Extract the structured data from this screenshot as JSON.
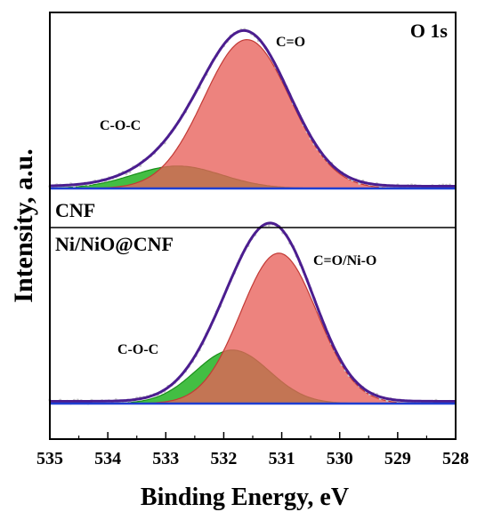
{
  "chart_data": {
    "type": "area",
    "xlabel": "Binding Energy, eV",
    "ylabel": "Intensity, a.u.",
    "xlim": [
      535,
      528
    ],
    "x_ticks": [
      "535",
      "534",
      "533",
      "532",
      "531",
      "530",
      "529",
      "528"
    ],
    "x_reversed": true,
    "grid": false,
    "colors": {
      "envelope": "#4b1d8f",
      "main_peak": "#e8605a",
      "main_peak_edge": "#c23a36",
      "secondary_peak": "#22b322",
      "secondary_peak_edge": "#1a8f1a",
      "baseline": "#1f3fd1",
      "raw_points": "#c9c9c9"
    },
    "panels": [
      {
        "name": "CNF",
        "label": "CNF",
        "corner_label": "O 1s",
        "peaks": [
          {
            "label": "C=O",
            "center": 531.6,
            "height": 0.93,
            "fwhm": 1.75,
            "color": "main_peak"
          },
          {
            "label": "C-O-C",
            "center": 532.8,
            "height": 0.14,
            "fwhm": 1.8,
            "color": "secondary_peak"
          }
        ]
      },
      {
        "name": "Ni/NiO@CNF",
        "label": "Ni/NiO@CNF",
        "corner_label": "",
        "peaks": [
          {
            "label": "C=O/Ni-O",
            "center": 531.05,
            "height": 0.9,
            "fwhm": 1.55,
            "color": "main_peak"
          },
          {
            "label": "C-O-C",
            "center": 531.85,
            "height": 0.32,
            "fwhm": 1.5,
            "color": "secondary_peak"
          }
        ]
      }
    ]
  }
}
